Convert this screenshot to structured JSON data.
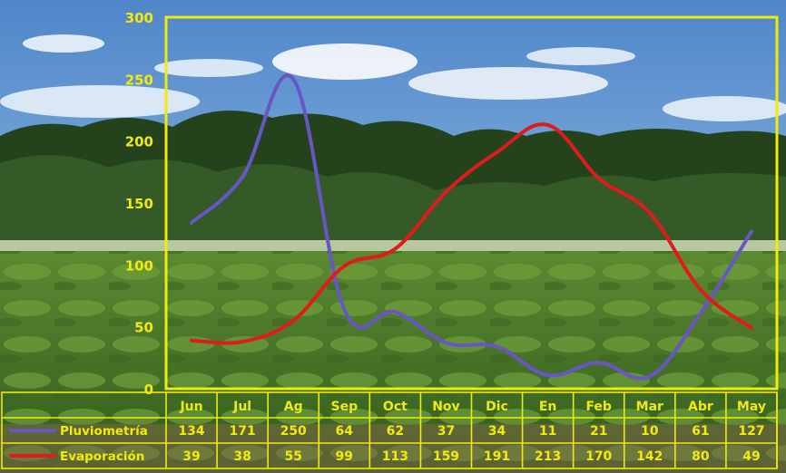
{
  "chart_data": {
    "type": "line",
    "categories": [
      "Jun",
      "Jul",
      "Ag",
      "Sep",
      "Oct",
      "Nov",
      "Dic",
      "En",
      "Feb",
      "Mar",
      "Abr",
      "May"
    ],
    "series": [
      {
        "name": "Pluviometría",
        "values": [
          134,
          171,
          250,
          64,
          62,
          37,
          34,
          11,
          21,
          10,
          61,
          127
        ],
        "color": "#6a55c4"
      },
      {
        "name": "Evaporación",
        "values": [
          39,
          38,
          55,
          99,
          113,
          159,
          191,
          213,
          170,
          142,
          80,
          49
        ],
        "color": "#e01b1b"
      }
    ],
    "y_ticks": [
      0,
      50,
      100,
      150,
      200,
      250,
      300
    ],
    "ylim": [
      0,
      300
    ],
    "axis_color": "#f2ea0a",
    "label_color": "#f2ea0a",
    "grid": false,
    "legend_placement": "data-table rows below the chart"
  }
}
